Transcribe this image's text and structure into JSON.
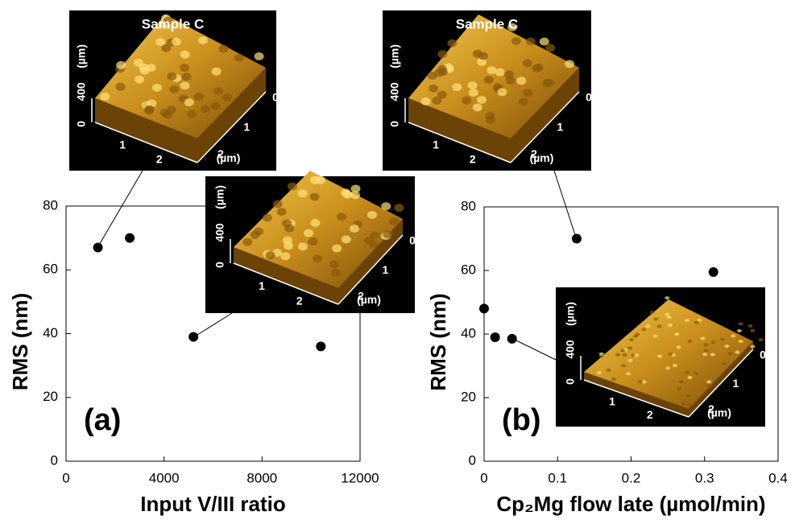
{
  "chart_data": [
    {
      "type": "scatter",
      "panel_label": "(a)",
      "x_label": "Input V/III ratio",
      "y_label": "RMS (nm)",
      "x": [
        1300,
        2600,
        5200,
        10400
      ],
      "values": [
        67,
        70,
        39,
        36
      ],
      "color": "#000000",
      "xlim": [
        0,
        12000
      ],
      "xticks": [
        0,
        4000,
        8000,
        12000
      ],
      "ylim": [
        0,
        80
      ],
      "yticks": [
        0,
        20,
        40,
        60,
        80
      ]
    },
    {
      "type": "scatter",
      "panel_label": "(b)",
      "x_label": "Cp₂Mg flow late (µmol/min)",
      "y_label": "RMS (nm)",
      "x": [
        0,
        0.015,
        0.038,
        0.126,
        0.312
      ],
      "values": [
        48,
        39,
        38.5,
        70,
        59.5
      ],
      "color": "#000000",
      "xlim": [
        0,
        0.4
      ],
      "xticks": [
        0,
        0.1,
        0.2,
        0.3,
        0.4
      ],
      "ylim": [
        0,
        80
      ],
      "yticks": [
        0,
        20,
        40,
        60,
        80
      ]
    }
  ],
  "insets": [
    {
      "title": "Sample C",
      "z_ticks": [
        "0",
        "400"
      ],
      "z_unit": "(µm)",
      "x_ticks": [
        "1",
        "2"
      ],
      "y_ticks": [
        "0",
        "1",
        "2"
      ],
      "y_unit": "(µm)"
    },
    {
      "z_ticks": [
        "0",
        "400"
      ],
      "z_unit": "(µm)",
      "x_ticks": [
        "1",
        "2"
      ],
      "y_ticks": [
        "0",
        "1",
        "2"
      ],
      "y_unit": "(µm)"
    },
    {
      "title": "Sample C",
      "z_ticks": [
        "0",
        "400"
      ],
      "z_unit": "(µm)",
      "x_ticks": [
        "1",
        "2"
      ],
      "y_ticks": [
        "0",
        "1",
        "2"
      ],
      "y_unit": "(µm)"
    },
    {
      "z_ticks": [
        "0",
        "400"
      ],
      "z_unit": "(µm)",
      "x_ticks": [
        "1",
        "2"
      ],
      "y_ticks": [
        "0",
        "1",
        "2"
      ],
      "y_unit": "(µm)"
    }
  ]
}
